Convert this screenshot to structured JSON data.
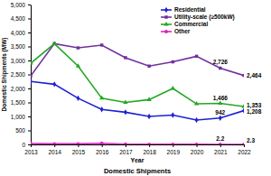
{
  "chart_data": {
    "type": "line",
    "title": "Domestic Shipments",
    "x_label": "Year",
    "y_label": "Domestic Shipments (MW)",
    "x": [
      2013,
      2014,
      2015,
      2016,
      2017,
      2018,
      2019,
      2020,
      2021,
      2022
    ],
    "xlim": [
      2013,
      2022
    ],
    "xticks": [
      2013,
      2014,
      2015,
      2016,
      2017,
      2018,
      2019,
      2020,
      2021,
      2022
    ],
    "ylim": [
      0,
      5000
    ],
    "yticks": [
      0,
      500,
      {
        "value": 1000,
        "label": "1,000"
      },
      {
        "value": 1500,
        "label": "1,500"
      },
      {
        "value": 2000,
        "label": "2,000"
      },
      {
        "value": 2500,
        "label": "2,500"
      },
      {
        "value": 3000,
        "label": "3,000"
      },
      {
        "value": 3500,
        "label": "3,500"
      },
      {
        "value": 4000,
        "label": "4,000"
      },
      {
        "value": 4500,
        "label": "4,500"
      },
      {
        "value": 5000,
        "label": "5,000"
      }
    ],
    "grid": false,
    "legend": "upper right",
    "series": [
      {
        "name": "Residential",
        "color": "#1f1fd6",
        "marker": "diamond",
        "data_labels": true,
        "values": [
          2250,
          2150,
          1650,
          1250,
          1150,
          1000,
          1050,
          870,
          942,
          1208
        ],
        "value_labels": [
          null,
          null,
          null,
          null,
          null,
          null,
          null,
          null,
          "942",
          "1,208"
        ]
      },
      {
        "name": "Utility-scale (≥500kW)",
        "color": "#7030a0",
        "marker": "square",
        "data_labels": true,
        "values": [
          2450,
          3600,
          3450,
          3550,
          3100,
          2800,
          2950,
          3150,
          2726,
          2464
        ],
        "value_labels": [
          null,
          null,
          null,
          null,
          null,
          null,
          null,
          null,
          "2,726",
          "2,464"
        ]
      },
      {
        "name": "Commercial",
        "color": "#22a822",
        "marker": "triangle",
        "data_labels": true,
        "values": [
          2900,
          3600,
          2800,
          1650,
          1500,
          1600,
          2000,
          1450,
          1466,
          1353
        ],
        "value_labels": [
          null,
          null,
          null,
          null,
          null,
          null,
          null,
          null,
          "1,466",
          "1,353"
        ]
      },
      {
        "name": "Other",
        "color": "#e020c0",
        "marker": "circle",
        "data_labels": true,
        "values": [
          30,
          20,
          20,
          40,
          10,
          5,
          5,
          3,
          2.2,
          2.3
        ],
        "value_labels": [
          null,
          null,
          null,
          null,
          null,
          null,
          null,
          null,
          "2.2",
          "2.3"
        ]
      }
    ]
  }
}
